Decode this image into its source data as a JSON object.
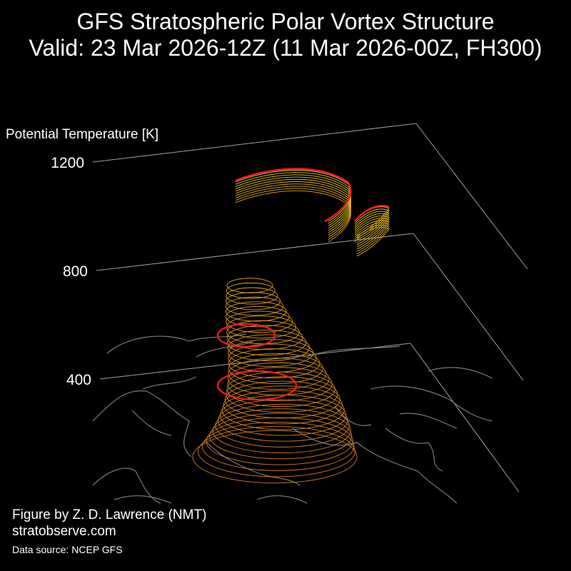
{
  "title": {
    "line1": "GFS Stratospheric Polar Vortex Structure",
    "line2": "Valid: 23 Mar 2026-12Z  (11 Mar 2026-00Z, FH300)"
  },
  "chart_data": {
    "type": "3d-isosurface",
    "zlabel": "Potential Temperature [K]",
    "z_ticks": [
      400,
      800,
      1200
    ],
    "grid": true,
    "colors": {
      "background": "#000000",
      "grid": "#a0a0a0",
      "coastlines": "#7a7a7a",
      "low_level": "#d47a1c",
      "mid_level": "#e0a020",
      "high_level": "#e8d020",
      "edge_highlight": "#ff1a1a"
    },
    "isosurfaces": [
      {
        "level_range": "upper",
        "shape": "crescent arc near 1100-1200 K"
      },
      {
        "level_range": "lower",
        "shape": "vertical column from surface to about 850 K"
      }
    ]
  },
  "credits": {
    "author": "Figure by Z. D. Lawrence (NMT)",
    "site": "stratobserve.com",
    "source": "Data source: NCEP GFS"
  }
}
